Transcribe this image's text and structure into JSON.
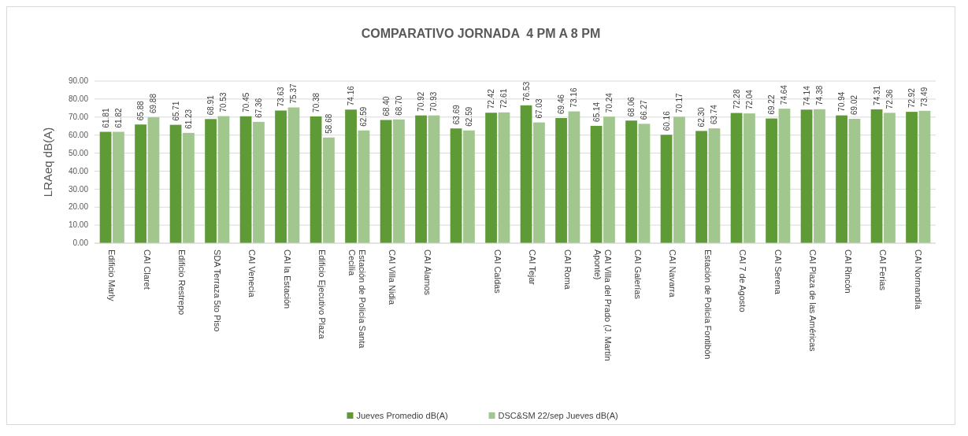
{
  "chart_data": {
    "type": "bar",
    "title": "COMPARATIVO JORNADA  4 PM A 8 PM",
    "ylabel": "LRAeq dB(A)",
    "categories": [
      "Edificio Marly",
      "CAI Claret",
      "Edificio Restrepo",
      "SDA Terraza 5to Piso",
      "CAI Venecia",
      "CAI la Estación",
      "Edificio Ejecutivo Plaza",
      "Estación de Policía Santa Cecilia",
      "CAI Villa Nidia",
      "CAI Álamos",
      null,
      "CAI Caldas",
      "CAI Tejar",
      "CAI Roma",
      "CAI Villa del Prado (J. Martín Aponte)",
      "CAI Galerías",
      "CAI Navarra",
      "Estación de Policía Fontibón",
      "CAI 7 de Agosto",
      "CAI Serena",
      "CAI Plaza de las Américas",
      "CAI Rincón",
      "CAI Ferias",
      "CAI Normandía"
    ],
    "series": [
      {
        "name": "Jueves Promedio dB(A)",
        "color": "#5e9a36",
        "values": [
          61.81,
          65.88,
          65.71,
          68.91,
          70.45,
          73.63,
          70.38,
          74.16,
          68.4,
          70.92,
          63.69,
          72.42,
          76.53,
          69.46,
          65.14,
          68.06,
          60.16,
          62.3,
          72.28,
          69.22,
          74.14,
          70.94,
          74.31,
          72.92
        ],
        "value_labels": [
          "61.81",
          "65.88",
          "65.71",
          "68.91",
          "70.45",
          "73.63",
          "70.38",
          "74.16",
          "68.40",
          "70.92",
          "63.69",
          "72.42",
          "76.53",
          "69.46",
          "65.14",
          "68.06",
          "60.16",
          "62.30",
          "72.28",
          "69.22",
          "74.14",
          "70.94",
          "74.31",
          "72.92"
        ]
      },
      {
        "name": "DSC&SM 22/sep Jueves dB(A)",
        "color": "#a2c78e",
        "values": [
          61.82,
          69.88,
          61.23,
          70.53,
          67.36,
          75.37,
          58.68,
          62.59,
          68.7,
          70.93,
          62.59,
          72.61,
          67.03,
          73.16,
          70.24,
          66.27,
          70.17,
          63.74,
          72.04,
          74.64,
          74.38,
          69.02,
          72.36,
          73.49
        ],
        "value_labels": [
          "61.82",
          "69.88",
          "61.23",
          "70.53",
          "67.36",
          "75.37",
          "58.68",
          "62.59",
          "68.70",
          "70.93",
          "62.59",
          "72.61",
          "67.03",
          "73.16",
          "70.24",
          "66.27",
          "70.17",
          "63.74",
          "72.04",
          "74.64",
          "74.38",
          "69.02",
          "72.36",
          "73.49"
        ]
      }
    ],
    "ylim": [
      0,
      90
    ],
    "yticks": [
      {
        "value": 0,
        "label": "0.00"
      },
      {
        "value": 10,
        "label": "10.00"
      },
      {
        "value": 20,
        "label": "20.00"
      },
      {
        "value": 30,
        "label": "30.00"
      },
      {
        "value": 40,
        "label": "40.00"
      },
      {
        "value": 50,
        "label": "50.00"
      },
      {
        "value": 60,
        "label": "60.00"
      },
      {
        "value": 70,
        "label": "70.00"
      },
      {
        "value": 80,
        "label": "80.00"
      },
      {
        "value": 90,
        "label": "90.00"
      }
    ],
    "grid": "y",
    "legend": "bottom"
  }
}
